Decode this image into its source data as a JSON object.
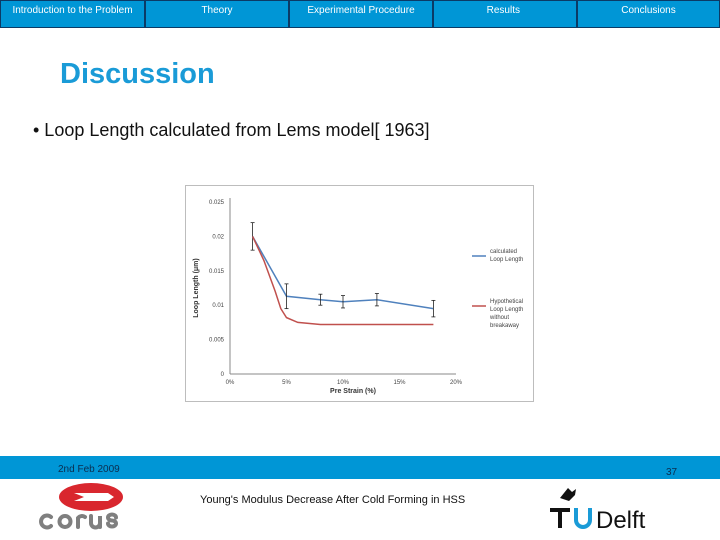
{
  "nav": {
    "tabs": [
      {
        "label": "Introduction to the Problem"
      },
      {
        "label": "Theory"
      },
      {
        "label": "Experimental Procedure"
      },
      {
        "label": "Results"
      },
      {
        "label": "Conclusions"
      }
    ]
  },
  "slide": {
    "title": "Discussion",
    "bullet": "• Loop Length calculated from Lems model[ 1963]"
  },
  "footer": {
    "date": "2nd Feb 2009",
    "page_number": "37",
    "subtitle": "Young's Modulus Decrease After Cold Forming in HSS",
    "left_logo_text": "corus",
    "right_logo_text": "TUDelft"
  },
  "colors": {
    "nav_blue": "#0096d6",
    "title_blue": "#1a9bd7",
    "series_blue": "#4f81bd",
    "series_red": "#c0504d",
    "corus_red": "#d9272e",
    "corus_gray": "#7f7f7f"
  },
  "chart_data": {
    "type": "line",
    "title": "",
    "xlabel": "Pre Strain (%)",
    "ylabel": "Loop Length (μm)",
    "xlim": [
      0,
      20
    ],
    "ylim": [
      0,
      0.025
    ],
    "x_ticks": [
      "0%",
      "5%",
      "10%",
      "15%",
      "20%"
    ],
    "y_ticks": [
      "0",
      "0.005",
      "0.01",
      "0.015",
      "0.02",
      "0.025"
    ],
    "grid": false,
    "legend_position": "right",
    "series": [
      {
        "name": "calculated Loop Length",
        "color": "#4f81bd",
        "x": [
          2,
          5,
          8,
          10,
          13,
          18
        ],
        "y": [
          0.02,
          0.0113,
          0.0108,
          0.0105,
          0.0108,
          0.0095
        ],
        "error": [
          0.002,
          0.0018,
          0.0008,
          0.0009,
          0.0009,
          0.0012
        ]
      },
      {
        "name": "Hypothetical Loop Length without breakaway",
        "color": "#c0504d",
        "x": [
          2,
          3,
          4,
          4.5,
          5,
          6,
          8,
          10,
          13,
          18
        ],
        "y": [
          0.02,
          0.0165,
          0.012,
          0.0095,
          0.0082,
          0.0075,
          0.0072,
          0.0072,
          0.0072,
          0.0072
        ]
      }
    ]
  }
}
